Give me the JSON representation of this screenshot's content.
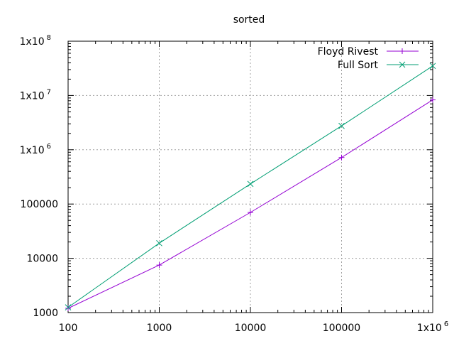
{
  "chart_data": {
    "type": "line",
    "title": "sorted",
    "xlabel": "",
    "ylabel": "",
    "xscale": "log",
    "yscale": "log",
    "xlim": [
      100,
      1000000
    ],
    "ylim": [
      1000,
      100000000
    ],
    "grid": true,
    "legend_position": "top-right",
    "x_ticks": [
      {
        "value": 100,
        "base": "100",
        "exp": ""
      },
      {
        "value": 1000,
        "base": "1000",
        "exp": ""
      },
      {
        "value": 10000,
        "base": "10000",
        "exp": ""
      },
      {
        "value": 100000,
        "base": "100000",
        "exp": ""
      },
      {
        "value": 1000000,
        "base": "1x10",
        "exp": "6"
      }
    ],
    "y_ticks": [
      {
        "value": 1000,
        "base": "1000",
        "exp": ""
      },
      {
        "value": 10000,
        "base": "10000",
        "exp": ""
      },
      {
        "value": 100000,
        "base": "100000",
        "exp": ""
      },
      {
        "value": 1000000,
        "base": "1x10",
        "exp": "6"
      },
      {
        "value": 10000000,
        "base": "1x10",
        "exp": "7"
      },
      {
        "value": 100000000,
        "base": "1x10",
        "exp": "8"
      }
    ],
    "x": [
      100,
      1000,
      10000,
      100000,
      1000000
    ],
    "series": [
      {
        "name": "Floyd Rivest",
        "color": "#9400d3",
        "marker": "plus",
        "values": [
          1200,
          7500,
          70000,
          720000,
          8300000
        ]
      },
      {
        "name": "Full Sort",
        "color": "#009e73",
        "marker": "cross",
        "values": [
          1250,
          19000,
          235000,
          2750000,
          35000000
        ]
      }
    ]
  }
}
